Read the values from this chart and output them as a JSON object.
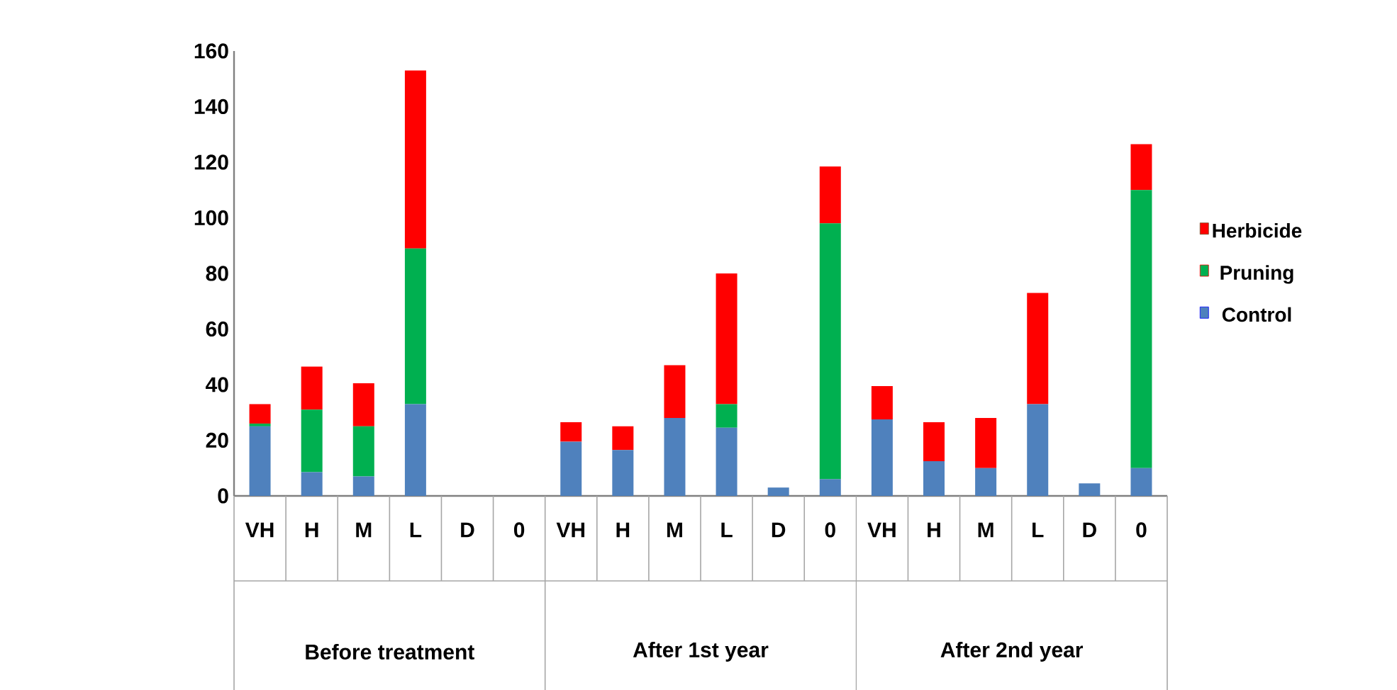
{
  "chart_data": {
    "type": "bar",
    "stacked": true,
    "categories": [
      "VH",
      "H",
      "M",
      "L",
      "D",
      "0",
      "VH",
      "H",
      "M",
      "L",
      "D",
      "0",
      "VH",
      "H",
      "M",
      "L",
      "D",
      "0"
    ],
    "annotations": [
      "Before treatment",
      "After 1st year",
      "After 2nd year"
    ],
    "series": [
      {
        "name": "Control",
        "color": "#4f81bd",
        "values": [
          25,
          8.5,
          7,
          33,
          0,
          0,
          19.5,
          16.5,
          28,
          24.5,
          3,
          6,
          27.5,
          12.5,
          10,
          33,
          4.5,
          10
        ]
      },
      {
        "name": "Pruning",
        "color": "#00b050",
        "values": [
          1,
          22.5,
          18,
          56,
          0,
          0,
          0,
          0,
          0,
          8.5,
          0,
          92,
          0,
          0,
          0,
          0,
          0,
          100
        ]
      },
      {
        "name": "Herbicide",
        "color": "#ff0000",
        "values": [
          7,
          15.5,
          15.5,
          64,
          0,
          0,
          7,
          8.5,
          19,
          47,
          0,
          20.5,
          12,
          14,
          18,
          40,
          0,
          16.5
        ]
      }
    ],
    "ylim": [
      0,
      160
    ],
    "yticks": [
      0,
      20,
      40,
      60,
      80,
      100,
      120,
      140,
      160
    ],
    "legend": "right"
  }
}
